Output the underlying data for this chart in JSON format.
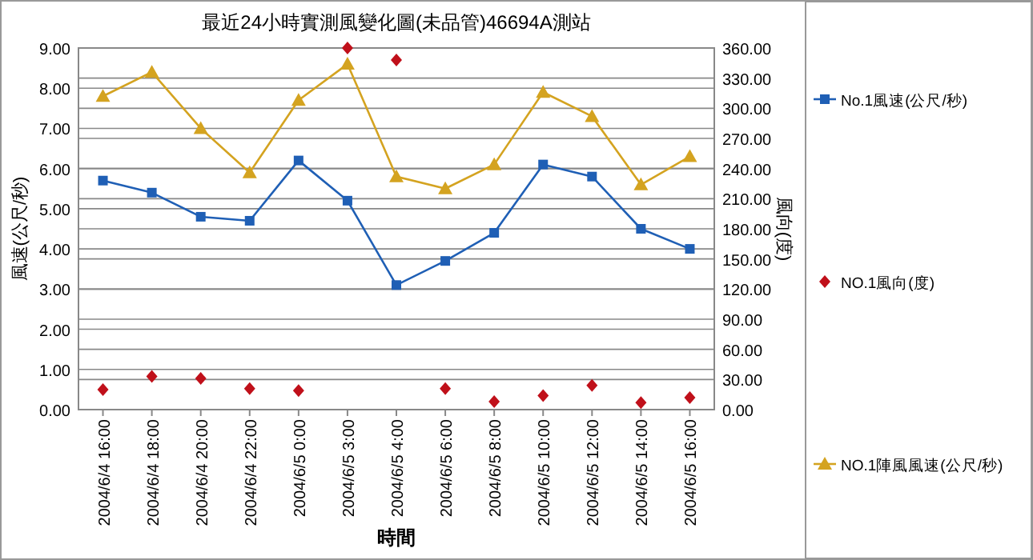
{
  "chart_data": {
    "type": "line",
    "title": "最近24小時實測風變化圖(未品管)46694A測站",
    "xlabel": "時間",
    "ylabel": "風速(公尺/秒)",
    "y2label": "風向(度)",
    "categories": [
      "2004/6/4 16:00",
      "2004/6/4 18:00",
      "2004/6/4 20:00",
      "2004/6/4 22:00",
      "2004/6/5 0:00",
      "2004/6/5 3:00",
      "2004/6/5 4:00",
      "2004/6/5 6:00",
      "2004/6/5 8:00",
      "2004/6/5 10:00",
      "2004/6/5 12:00",
      "2004/6/5 14:00",
      "2004/6/5 16:00"
    ],
    "series": [
      {
        "name": "No.1風速(公尺/秒)",
        "color": "#1f5fb5",
        "marker": "square",
        "values": [
          5.7,
          5.4,
          4.8,
          4.7,
          6.2,
          5.2,
          3.1,
          3.7,
          4.4,
          6.1,
          5.8,
          4.5,
          4.0
        ]
      },
      {
        "name": "NO.1風向(度)",
        "color": "#c0101a",
        "type": "scatter",
        "marker": "diamond",
        "axis": "y2",
        "values": [
          20,
          33,
          31,
          21,
          19,
          360,
          348,
          21,
          8,
          14,
          24,
          7,
          12
        ]
      },
      {
        "name": "NO.1陣風風速(公尺/秒)",
        "color": "#d4a320",
        "marker": "triangle",
        "values": [
          7.8,
          8.4,
          7.0,
          5.9,
          7.7,
          8.6,
          5.8,
          5.5,
          6.1,
          7.9,
          7.3,
          5.6,
          6.3
        ]
      }
    ],
    "ylim": [
      0,
      9
    ],
    "yticks": [
      {
        "value": 0,
        "label": "0.00"
      },
      {
        "value": 1,
        "label": "1.00"
      },
      {
        "value": 2,
        "label": "2.00"
      },
      {
        "value": 3,
        "label": "3.00"
      },
      {
        "value": 4,
        "label": "4.00"
      },
      {
        "value": 5,
        "label": "5.00"
      },
      {
        "value": 6,
        "label": "6.00"
      },
      {
        "value": 7,
        "label": "7.00"
      },
      {
        "value": 8,
        "label": "8.00"
      },
      {
        "value": 9,
        "label": "9.00"
      }
    ],
    "y2lim": [
      0,
      360
    ],
    "y2ticks": [
      {
        "value": 0,
        "label": "0.00"
      },
      {
        "value": 30,
        "label": "30.00"
      },
      {
        "value": 60,
        "label": "60.00"
      },
      {
        "value": 90,
        "label": "90.00"
      },
      {
        "value": 120,
        "label": "120.00"
      },
      {
        "value": 150,
        "label": "150.00"
      },
      {
        "value": 180,
        "label": "180.00"
      },
      {
        "value": 210,
        "label": "210.00"
      },
      {
        "value": 240,
        "label": "240.00"
      },
      {
        "value": 270,
        "label": "270.00"
      },
      {
        "value": 300,
        "label": "300.00"
      },
      {
        "value": 330,
        "label": "330.00"
      },
      {
        "value": 360,
        "label": "360.00"
      }
    ],
    "grid": true,
    "legend": "right",
    "line_style": "solid"
  }
}
